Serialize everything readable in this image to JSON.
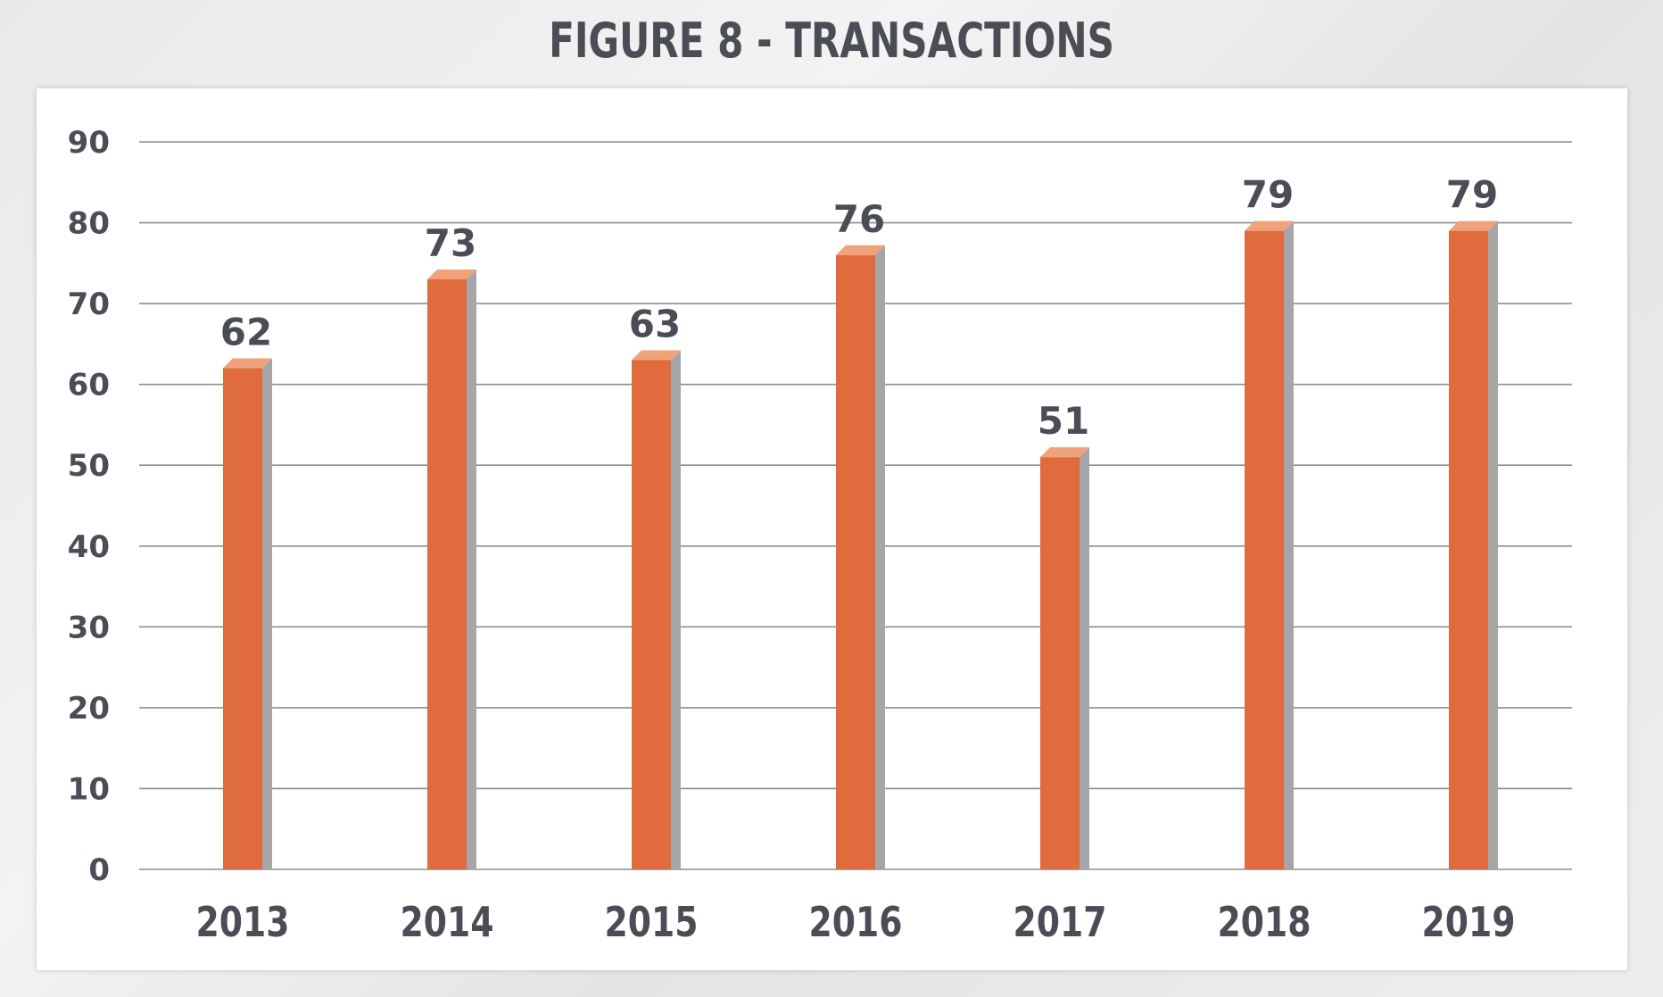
{
  "figure": {
    "title": "FIGURE 8 - TRANSACTIONS"
  },
  "chart_data": {
    "type": "bar",
    "title": "FIGURE 8 - TRANSACTIONS",
    "categories": [
      "2013",
      "2014",
      "2015",
      "2016",
      "2017",
      "2018",
      "2019"
    ],
    "values": [
      62,
      73,
      63,
      76,
      51,
      79,
      79
    ],
    "ylim": [
      0,
      90
    ],
    "yticks": [
      0,
      10,
      20,
      30,
      40,
      50,
      60,
      70,
      80,
      90
    ],
    "grid": true,
    "data_labels": true,
    "colors": {
      "bar_front": "#e06b3d",
      "bar_top": "#f0a27b",
      "bar_side": "#a6a6a8",
      "grid": "#8e8e8e",
      "text": "#4a4d55"
    }
  }
}
